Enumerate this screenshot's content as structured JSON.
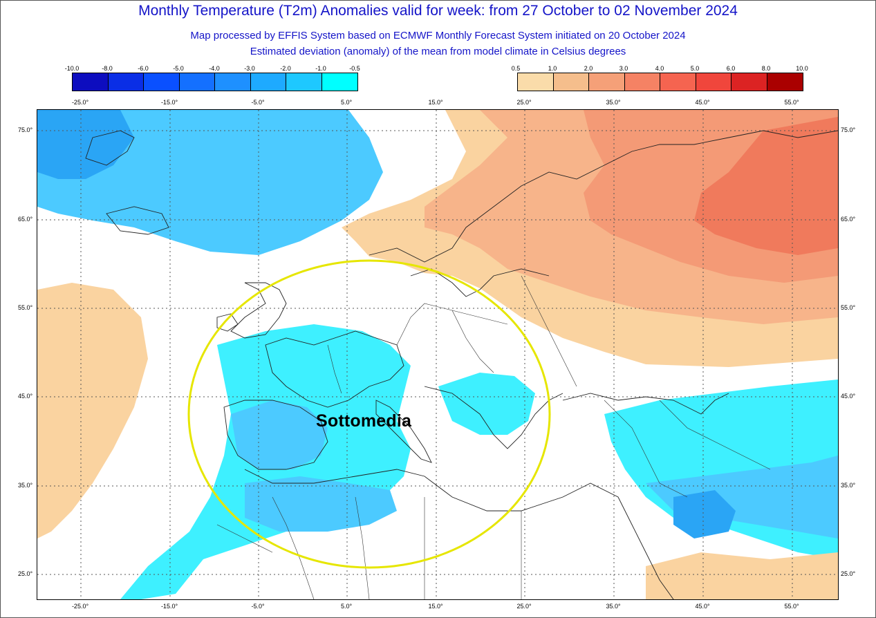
{
  "header": {
    "title": "Monthly Temperature (T2m) Anomalies valid for week: from 27 October to 02 November 2024",
    "subtitle1": "Map processed by EFFIS System based on ECMWF Monthly Forecast System initiated on 20 October 2024",
    "subtitle2": "Estimated deviation (anomaly) of the mean from model climate in Celsius degrees"
  },
  "legend_cold": {
    "labels": [
      "-10.0",
      "-8.0",
      "-6.0",
      "-5.0",
      "-4.0",
      "-3.0",
      "-2.0",
      "-1.0",
      "-0.5"
    ],
    "colors": [
      "#0d0dbf",
      "#0a2ee6",
      "#0a50ff",
      "#1470ff",
      "#1e90ff",
      "#1eaaff",
      "#1ec8ff",
      "#00ffff"
    ]
  },
  "legend_warm": {
    "labels": [
      "0.5",
      "1.0",
      "2.0",
      "3.0",
      "4.0",
      "5.0",
      "6.0",
      "8.0",
      "10.0"
    ],
    "colors": [
      "#fadcaa",
      "#f5be8c",
      "#f5a078",
      "#f58264",
      "#f56450",
      "#f0463c",
      "#dc2323",
      "#aa0000"
    ]
  },
  "axes": {
    "lon_labels": [
      "-25.0°",
      "-15.0°",
      "-5.0°",
      "5.0°",
      "15.0°",
      "25.0°",
      "35.0°",
      "45.0°",
      "55.0°"
    ],
    "lat_labels": [
      "75.0°",
      "65.0°",
      "55.0°",
      "45.0°",
      "35.0°",
      "25.0°"
    ]
  },
  "annotation": {
    "label": "Sottomedia",
    "circle_color": "#e6e600"
  },
  "colors": {
    "cyan": "#3ef0ff",
    "light_blue": "#4ccaff",
    "mid_blue": "#2aa5f5",
    "peach": "#fad3a0",
    "light_orange": "#f7b48a",
    "orange": "#f49a76",
    "red_orange": "#f07a5c"
  }
}
